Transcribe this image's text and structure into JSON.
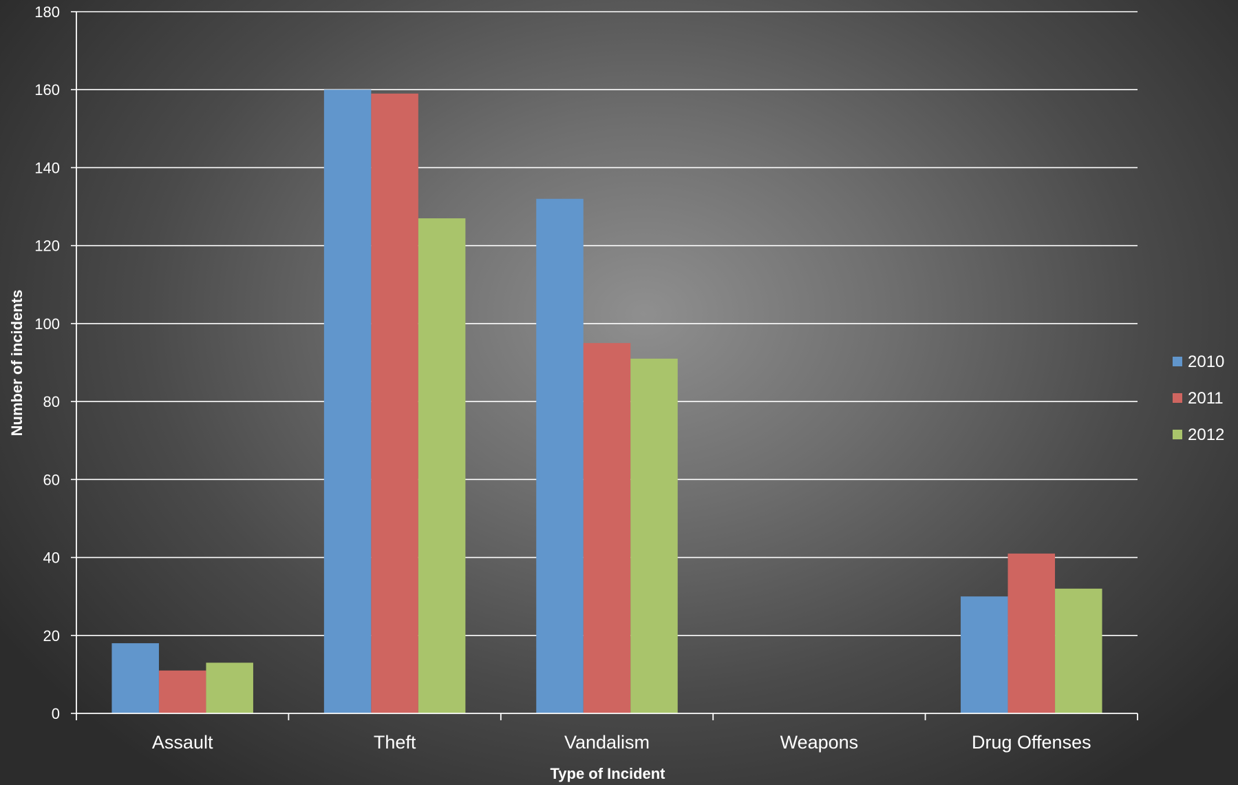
{
  "chart_data": {
    "type": "bar",
    "categories": [
      "Assault",
      "Theft",
      "Vandalism",
      "Weapons",
      "Drug Offenses"
    ],
    "series": [
      {
        "name": "2010",
        "color": "#6196cc",
        "values": [
          18,
          160,
          132,
          0,
          30
        ]
      },
      {
        "name": "2011",
        "color": "#cf6560",
        "values": [
          11,
          159,
          95,
          0,
          41
        ]
      },
      {
        "name": "2012",
        "color": "#a9c46b",
        "values": [
          13,
          127,
          91,
          0,
          32
        ]
      }
    ],
    "xlabel": "Type of Incident",
    "ylabel": "Number of incidents",
    "ylim": [
      0,
      180
    ],
    "yticks": [
      0,
      20,
      40,
      60,
      80,
      100,
      120,
      140,
      160,
      180
    ],
    "grid": true,
    "legend_position": "right"
  }
}
